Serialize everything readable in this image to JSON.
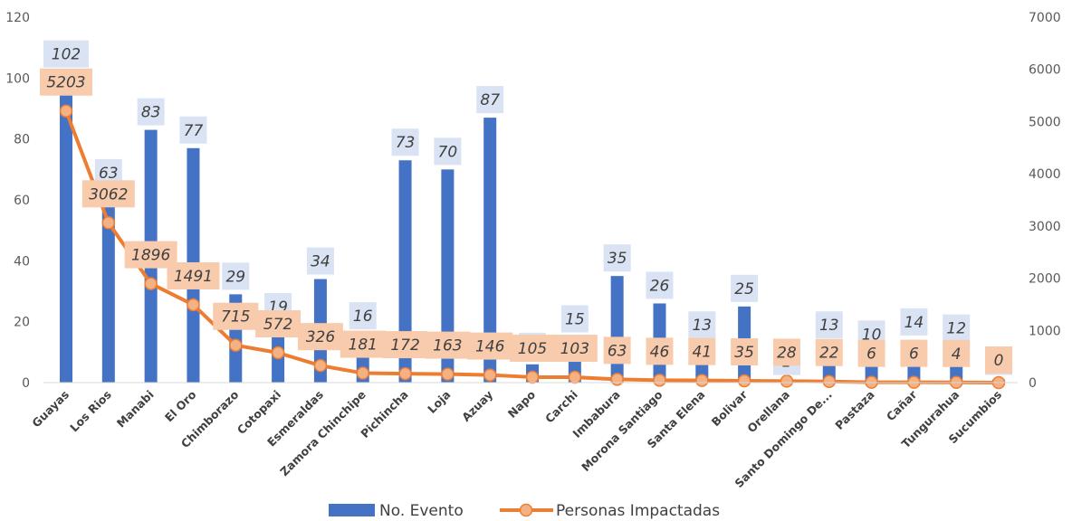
{
  "chart_data": {
    "type": "bar+line",
    "categories": [
      "Guayas",
      "Los Rios",
      "Manabi",
      "El Oro",
      "Chimborazo",
      "Cotopaxi",
      "Esmeraldas",
      "Zamora Chinchipe",
      "Pichincha",
      "Loja",
      "Azuay",
      "Napo",
      "Carchi",
      "Imbabura",
      "Morona Santiago",
      "Santa Elena",
      "Bolivar",
      "Orellana",
      "Santo Domingo De...",
      "Pastaza",
      "Cañar",
      "Tungurahua",
      "Sucumbios"
    ],
    "series": [
      {
        "name": "No. Evento",
        "type": "bar",
        "axis": "left",
        "color": "#4472C4",
        "values": [
          102,
          63,
          83,
          77,
          29,
          19,
          34,
          16,
          73,
          70,
          87,
          6,
          15,
          35,
          26,
          13,
          25,
          1,
          13,
          10,
          14,
          12,
          1
        ]
      },
      {
        "name": "Personas Impactadas",
        "type": "line",
        "axis": "right",
        "color": "#ED7D31",
        "values": [
          5203,
          3062,
          1896,
          1491,
          715,
          572,
          326,
          181,
          172,
          163,
          146,
          105,
          103,
          63,
          46,
          41,
          35,
          28,
          22,
          6,
          6,
          4,
          0
        ]
      }
    ],
    "y_left": {
      "min": 0,
      "max": 120,
      "ticks": [
        "0",
        "20",
        "40",
        "60",
        "80",
        "100",
        "120"
      ]
    },
    "y_right": {
      "min": 0,
      "max": 7000,
      "ticks": [
        "0",
        "1000",
        "2000",
        "3000",
        "4000",
        "5000",
        "6000",
        "7000"
      ]
    },
    "legend_position": "bottom",
    "grid": false,
    "colors": {
      "bar_label_bg": "#DAE3F3",
      "line_label_bg": "#F8CBAD",
      "marker_fill": "#F4B183"
    }
  }
}
